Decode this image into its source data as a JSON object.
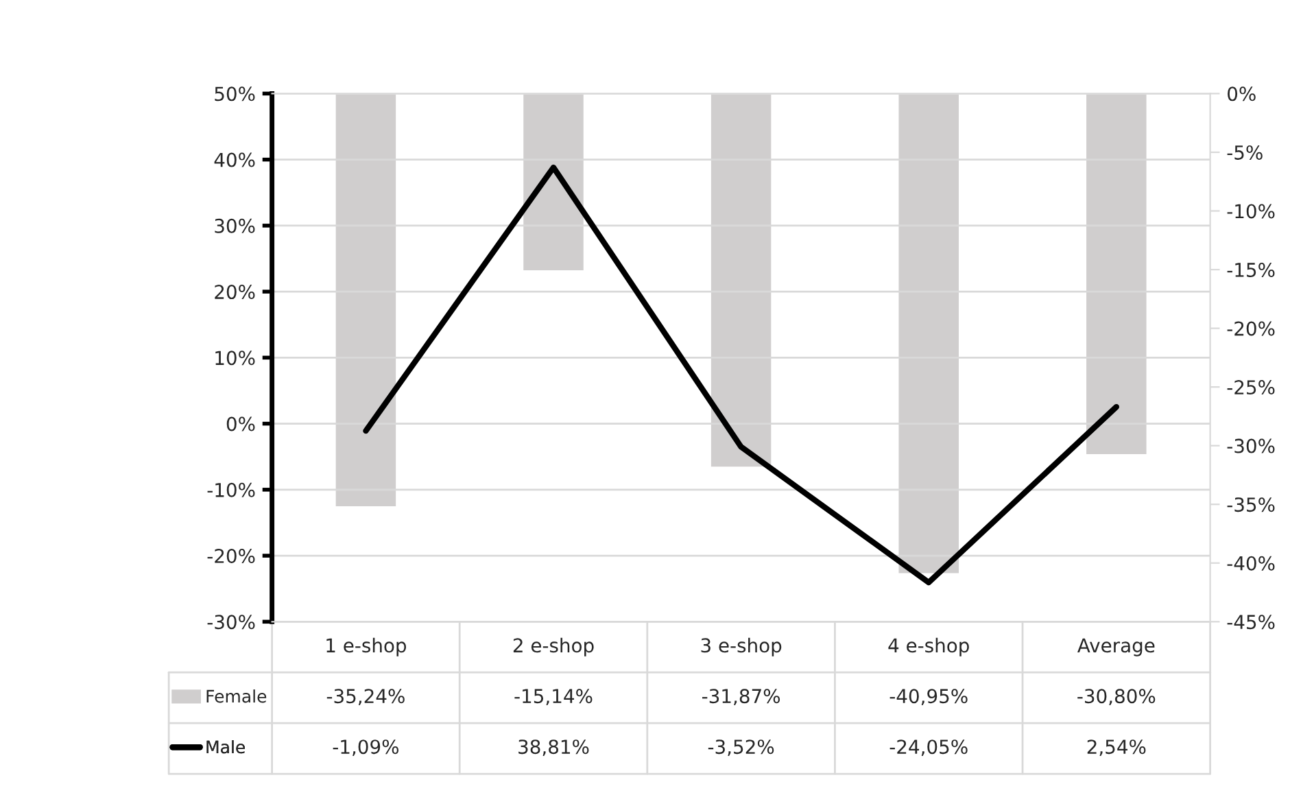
{
  "chart_data": {
    "type": "bar",
    "categories": [
      "1 e-shop",
      "2 e-shop",
      "3 e-shop",
      "4 e-shop",
      "Average"
    ],
    "series": [
      {
        "name": "Female",
        "axis": "y2",
        "color": "#d0cece",
        "values": [
          -35.24,
          -15.14,
          -31.87,
          -40.95,
          -30.8
        ],
        "value_labels": [
          "-35,24%",
          "-15,14%",
          "-31,87%",
          "-40,95%",
          "-30,80%"
        ]
      },
      {
        "name": "Male",
        "type": "line",
        "axis": "y",
        "color": "#000000",
        "values": [
          -1.09,
          38.81,
          -3.52,
          -24.05,
          2.54
        ],
        "value_labels": [
          "-1,09%",
          "38,81%",
          "-3,52%",
          "-24,05%",
          "2,54%"
        ]
      }
    ],
    "ylim": [
      -30,
      50
    ],
    "yticks": [
      {
        "value": -30,
        "label": "-30%"
      },
      {
        "value": -20,
        "label": "-20%"
      },
      {
        "value": -10,
        "label": "-10%"
      },
      {
        "value": 0,
        "label": "0%"
      },
      {
        "value": 10,
        "label": "10%"
      },
      {
        "value": 20,
        "label": "20%"
      },
      {
        "value": 30,
        "label": "30%"
      },
      {
        "value": 40,
        "label": "40%"
      },
      {
        "value": 50,
        "label": "50%"
      }
    ],
    "y2lim": [
      -45,
      0
    ],
    "y2ticks": [
      {
        "value": -45,
        "label": "-45%"
      },
      {
        "value": -40,
        "label": "-40%"
      },
      {
        "value": -35,
        "label": "-35%"
      },
      {
        "value": -30,
        "label": "-30%"
      },
      {
        "value": -25,
        "label": "-25%"
      },
      {
        "value": -20,
        "label": "-20%"
      },
      {
        "value": -15,
        "label": "-15%"
      },
      {
        "value": -10,
        "label": "-10%"
      },
      {
        "value": -5,
        "label": "-5%"
      },
      {
        "value": 0,
        "label": "0%"
      }
    ],
    "grid": "y",
    "legend": "bottom left",
    "line_style": "solid",
    "marker": "none"
  }
}
